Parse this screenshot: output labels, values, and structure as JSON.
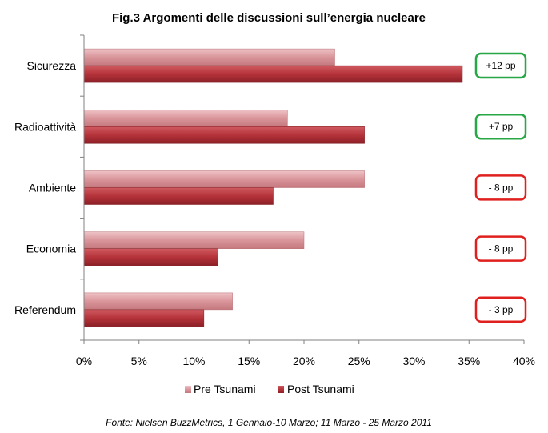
{
  "chart_data": {
    "type": "bar",
    "orientation": "horizontal",
    "title": "Fig.3 Argomenti delle discussioni sull’energia nucleare",
    "categories": [
      "Sicurezza",
      "Radioattività",
      "Ambiente",
      "Economia",
      "Referendum"
    ],
    "series": [
      {
        "name": "Pre Tsunami",
        "values": [
          22.8,
          18.5,
          25.5,
          20.0,
          13.5
        ],
        "color": "#d9959a"
      },
      {
        "name": "Post Tsunami",
        "values": [
          34.4,
          25.5,
          17.2,
          12.2,
          10.9
        ],
        "color": "#b5333a"
      }
    ],
    "xlim": [
      0,
      40
    ],
    "xticks": [
      "0%",
      "5%",
      "10%",
      "15%",
      "20%",
      "25%",
      "30%",
      "35%",
      "40%"
    ],
    "xtick_values": [
      0,
      5,
      10,
      15,
      20,
      25,
      30,
      35,
      40
    ],
    "grid": false,
    "legend_position": "bottom",
    "annotations": [
      {
        "category": "Sicurezza",
        "text": "+12 pp",
        "border_color": "#27a745"
      },
      {
        "category": "Radioattività",
        "text": "+7 pp",
        "border_color": "#27a745"
      },
      {
        "category": "Ambiente",
        "text": "- 8 pp",
        "border_color": "#e0201f"
      },
      {
        "category": "Economia",
        "text": "- 8 pp",
        "border_color": "#e0201f"
      },
      {
        "category": "Referendum",
        "text": "- 3 pp",
        "border_color": "#e0201f"
      }
    ],
    "source": "Fonte: Nielsen BuzzMetrics, 1 Gennaio-10 Marzo; 11 Marzo - 25 Marzo 2011"
  }
}
